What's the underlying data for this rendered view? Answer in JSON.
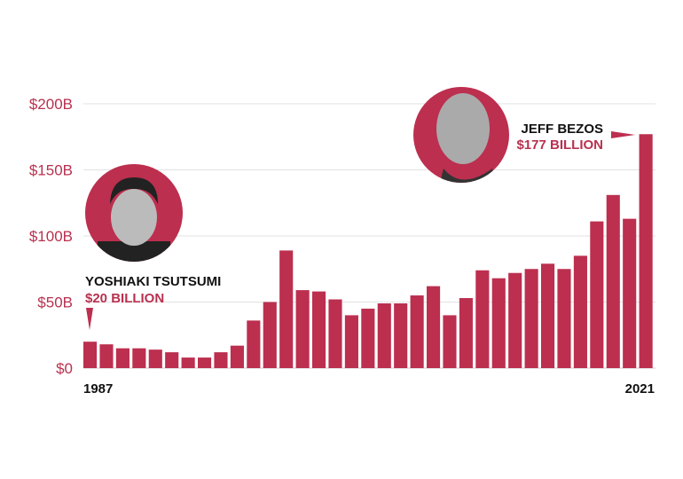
{
  "chart_data": {
    "type": "bar",
    "title": "",
    "xlabel": "",
    "ylabel": "",
    "ylim": [
      0,
      200
    ],
    "yticks": [
      "$0",
      "$50B",
      "$100B",
      "$150B",
      "$200B"
    ],
    "ytick_values": [
      0,
      50,
      100,
      150,
      200
    ],
    "x": [
      1987,
      1988,
      1989,
      1990,
      1991,
      1992,
      1993,
      1994,
      1995,
      1996,
      1997,
      1998,
      1999,
      2000,
      2001,
      2002,
      2003,
      2004,
      2005,
      2006,
      2007,
      2008,
      2009,
      2010,
      2011,
      2012,
      2013,
      2014,
      2015,
      2016,
      2017,
      2018,
      2019,
      2020,
      2021
    ],
    "values": [
      20,
      18,
      15,
      15,
      14,
      12,
      8,
      8,
      12,
      17,
      36,
      50,
      89,
      59,
      58,
      52,
      40,
      45,
      49,
      49,
      55,
      62,
      40,
      53,
      74,
      68,
      72,
      75,
      79,
      75,
      85,
      111,
      131,
      113,
      177
    ],
    "x_labels": {
      "first": "1987",
      "last": "2021"
    },
    "grid": true,
    "color": "#bc2f4f",
    "annotations": [
      {
        "name": "YOSHIAKI TSUTSUMI",
        "amount": "$20 BILLION",
        "year": 1987
      },
      {
        "name": "JEFF BEZOS",
        "amount": "$177 BILLION",
        "year": 2021
      }
    ]
  }
}
